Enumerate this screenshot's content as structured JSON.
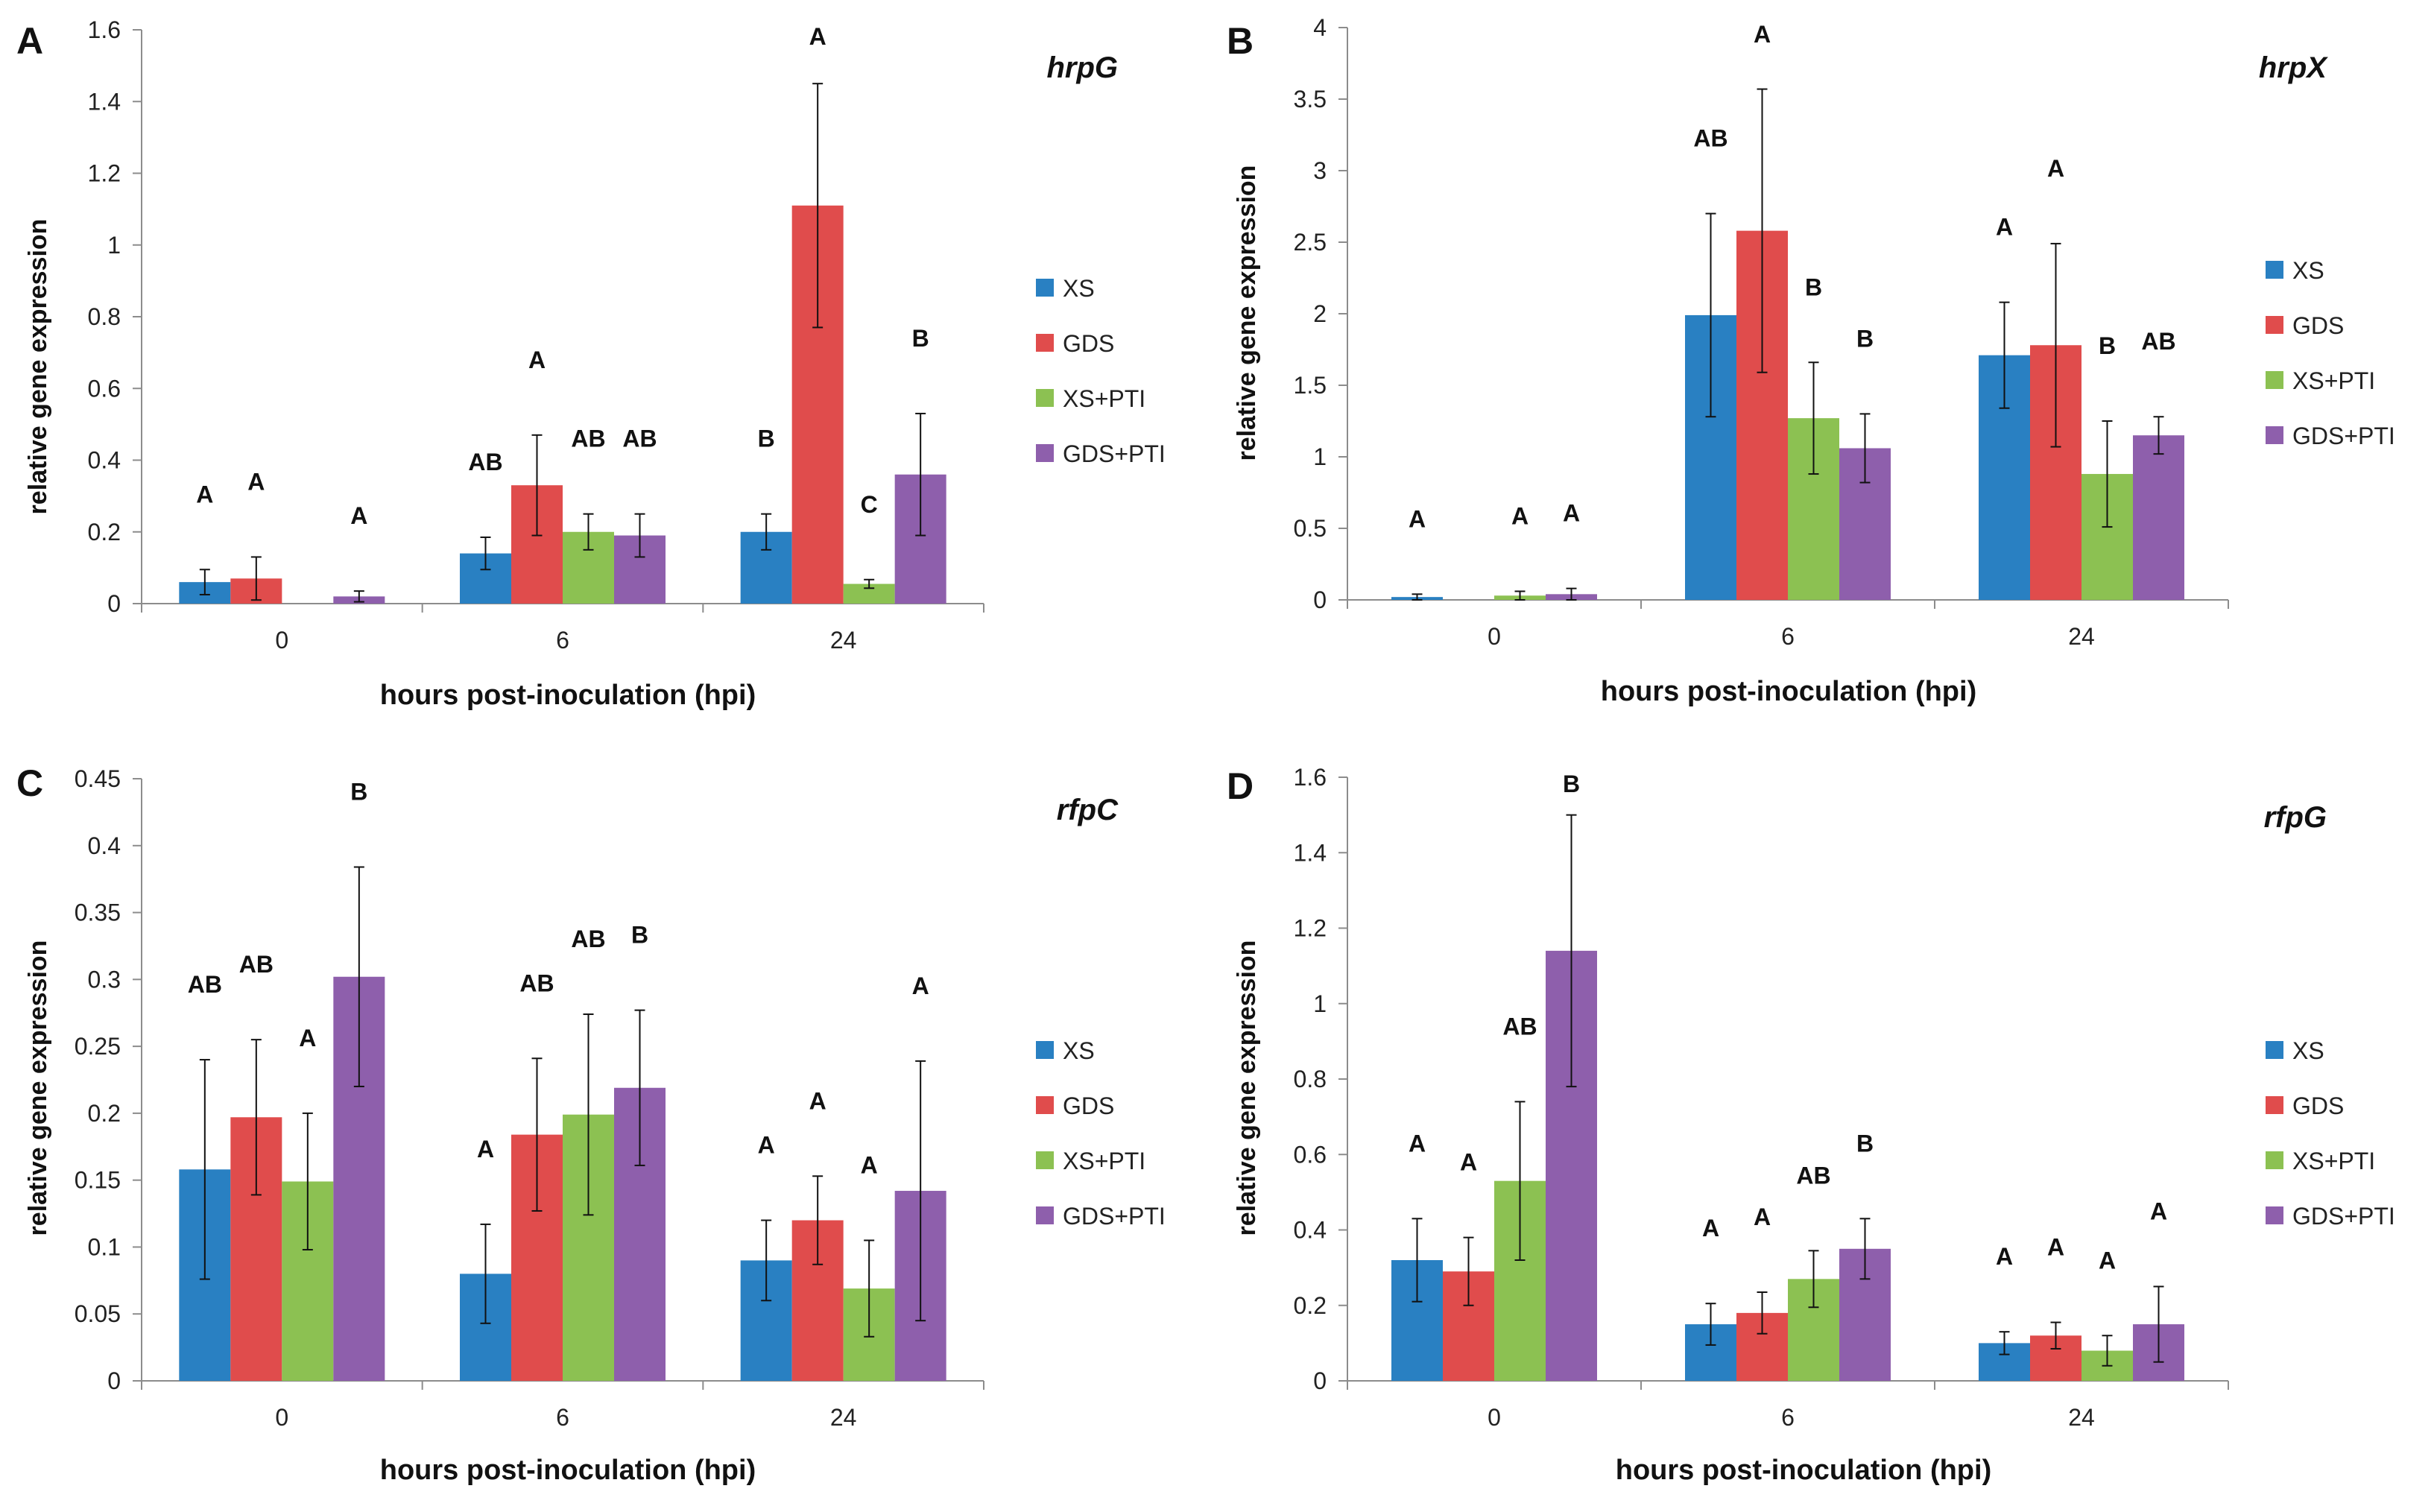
{
  "series_names": [
    "XS",
    "GDS",
    "XS+PTI",
    "GDS+PTI"
  ],
  "series_colors": [
    "#2980c2",
    "#e04c4c",
    "#8cc152",
    "#8e5fac"
  ],
  "chart_data": [
    {
      "panel": "A",
      "gene": "hrpG",
      "type": "bar",
      "title": "hrpG",
      "xlabel": "hours post-inoculation (hpi)",
      "ylabel": "relative gene expression",
      "categories": [
        "0",
        "6",
        "24"
      ],
      "ylim": [
        0,
        1.6
      ],
      "yticks": [
        "0",
        "0.2",
        "0.4",
        "0.6",
        "0.8",
        "1",
        "1.2",
        "1.4",
        "1.6"
      ],
      "series": [
        {
          "name": "XS",
          "values": [
            0.06,
            0.14,
            0.2
          ],
          "errors": [
            0.035,
            0.045,
            0.05
          ],
          "letters": [
            "A",
            "AB",
            "B"
          ]
        },
        {
          "name": "GDS",
          "values": [
            0.07,
            0.33,
            1.11
          ],
          "errors": [
            0.06,
            0.14,
            0.34
          ],
          "letters": [
            "A",
            "A",
            "A"
          ]
        },
        {
          "name": "XS+PTI",
          "values": [
            0,
            0.2,
            0.055
          ],
          "errors": [
            0,
            0.05,
            0.012
          ],
          "letters": [
            "",
            "AB",
            "C"
          ]
        },
        {
          "name": "GDS+PTI",
          "values": [
            0.02,
            0.19,
            0.36
          ],
          "errors": [
            0.015,
            0.06,
            0.17
          ],
          "letters": [
            "A",
            "AB",
            "B"
          ]
        }
      ]
    },
    {
      "panel": "B",
      "gene": "hrpX",
      "type": "bar",
      "title": "hrpX",
      "xlabel": "hours post-inoculation (hpi)",
      "ylabel": "relative gene expression",
      "categories": [
        "0",
        "6",
        "24"
      ],
      "ylim": [
        0,
        4
      ],
      "yticks": [
        "0",
        "0.5",
        "1",
        "1.5",
        "2",
        "2.5",
        "3",
        "3.5",
        "4"
      ],
      "series": [
        {
          "name": "XS",
          "values": [
            0.02,
            1.99,
            1.71
          ],
          "errors": [
            0.02,
            0.71,
            0.37
          ],
          "letters": [
            "A",
            "AB",
            "A"
          ]
        },
        {
          "name": "GDS",
          "values": [
            0,
            2.58,
            1.78
          ],
          "errors": [
            0,
            0.99,
            0.71
          ],
          "letters": [
            "",
            "A",
            "A"
          ]
        },
        {
          "name": "XS+PTI",
          "values": [
            0.03,
            1.27,
            0.88
          ],
          "errors": [
            0.03,
            0.39,
            0.37
          ],
          "letters": [
            "A",
            "B",
            "B"
          ]
        },
        {
          "name": "GDS+PTI",
          "values": [
            0.04,
            1.06,
            1.15
          ],
          "errors": [
            0.04,
            0.24,
            0.13
          ],
          "letters": [
            "A",
            "B",
            "AB"
          ]
        }
      ]
    },
    {
      "panel": "C",
      "gene": "rfpC",
      "type": "bar",
      "title": "rfpC",
      "xlabel": "hours post-inoculation (hpi)",
      "ylabel": "relative gene expression",
      "categories": [
        "0",
        "6",
        "24"
      ],
      "ylim": [
        0,
        0.45
      ],
      "yticks": [
        "0",
        "0.05",
        "0.1",
        "0.15",
        "0.2",
        "0.25",
        "0.3",
        "0.35",
        "0.4",
        "0.45"
      ],
      "series": [
        {
          "name": "XS",
          "values": [
            0.158,
            0.08,
            0.09
          ],
          "errors": [
            0.082,
            0.037,
            0.03
          ],
          "letters": [
            "AB",
            "A",
            "A"
          ]
        },
        {
          "name": "GDS",
          "values": [
            0.197,
            0.184,
            0.12
          ],
          "errors": [
            0.058,
            0.057,
            0.033
          ],
          "letters": [
            "AB",
            "AB",
            "A"
          ]
        },
        {
          "name": "XS+PTI",
          "values": [
            0.149,
            0.199,
            0.069
          ],
          "errors": [
            0.051,
            0.075,
            0.036
          ],
          "letters": [
            "A",
            "AB",
            "A"
          ]
        },
        {
          "name": "GDS+PTI",
          "values": [
            0.302,
            0.219,
            0.142
          ],
          "errors": [
            0.082,
            0.058,
            0.097
          ],
          "letters": [
            "B",
            "B",
            "A"
          ]
        }
      ]
    },
    {
      "panel": "D",
      "gene": "rfpG",
      "type": "bar",
      "title": "rfpG",
      "xlabel": "hours post-inoculation (hpi)",
      "ylabel": "relative gene expression",
      "categories": [
        "0",
        "6",
        "24"
      ],
      "ylim": [
        0,
        1.6
      ],
      "yticks": [
        "0",
        "0.2",
        "0.4",
        "0.6",
        "0.8",
        "1",
        "1.2",
        "1.4",
        "1.6"
      ],
      "series": [
        {
          "name": "XS",
          "values": [
            0.32,
            0.15,
            0.1
          ],
          "errors": [
            0.11,
            0.055,
            0.03
          ],
          "letters": [
            "A",
            "A",
            "A"
          ]
        },
        {
          "name": "GDS",
          "values": [
            0.29,
            0.18,
            0.12
          ],
          "errors": [
            0.09,
            0.055,
            0.035
          ],
          "letters": [
            "A",
            "A",
            "A"
          ]
        },
        {
          "name": "XS+PTI",
          "values": [
            0.53,
            0.27,
            0.08
          ],
          "errors": [
            0.21,
            0.075,
            0.04
          ],
          "letters": [
            "AB",
            "AB",
            "A"
          ]
        },
        {
          "name": "GDS+PTI",
          "values": [
            1.14,
            0.35,
            0.15
          ],
          "errors": [
            0.36,
            0.08,
            0.1
          ],
          "letters": [
            "B",
            "B",
            "A"
          ]
        }
      ]
    }
  ]
}
